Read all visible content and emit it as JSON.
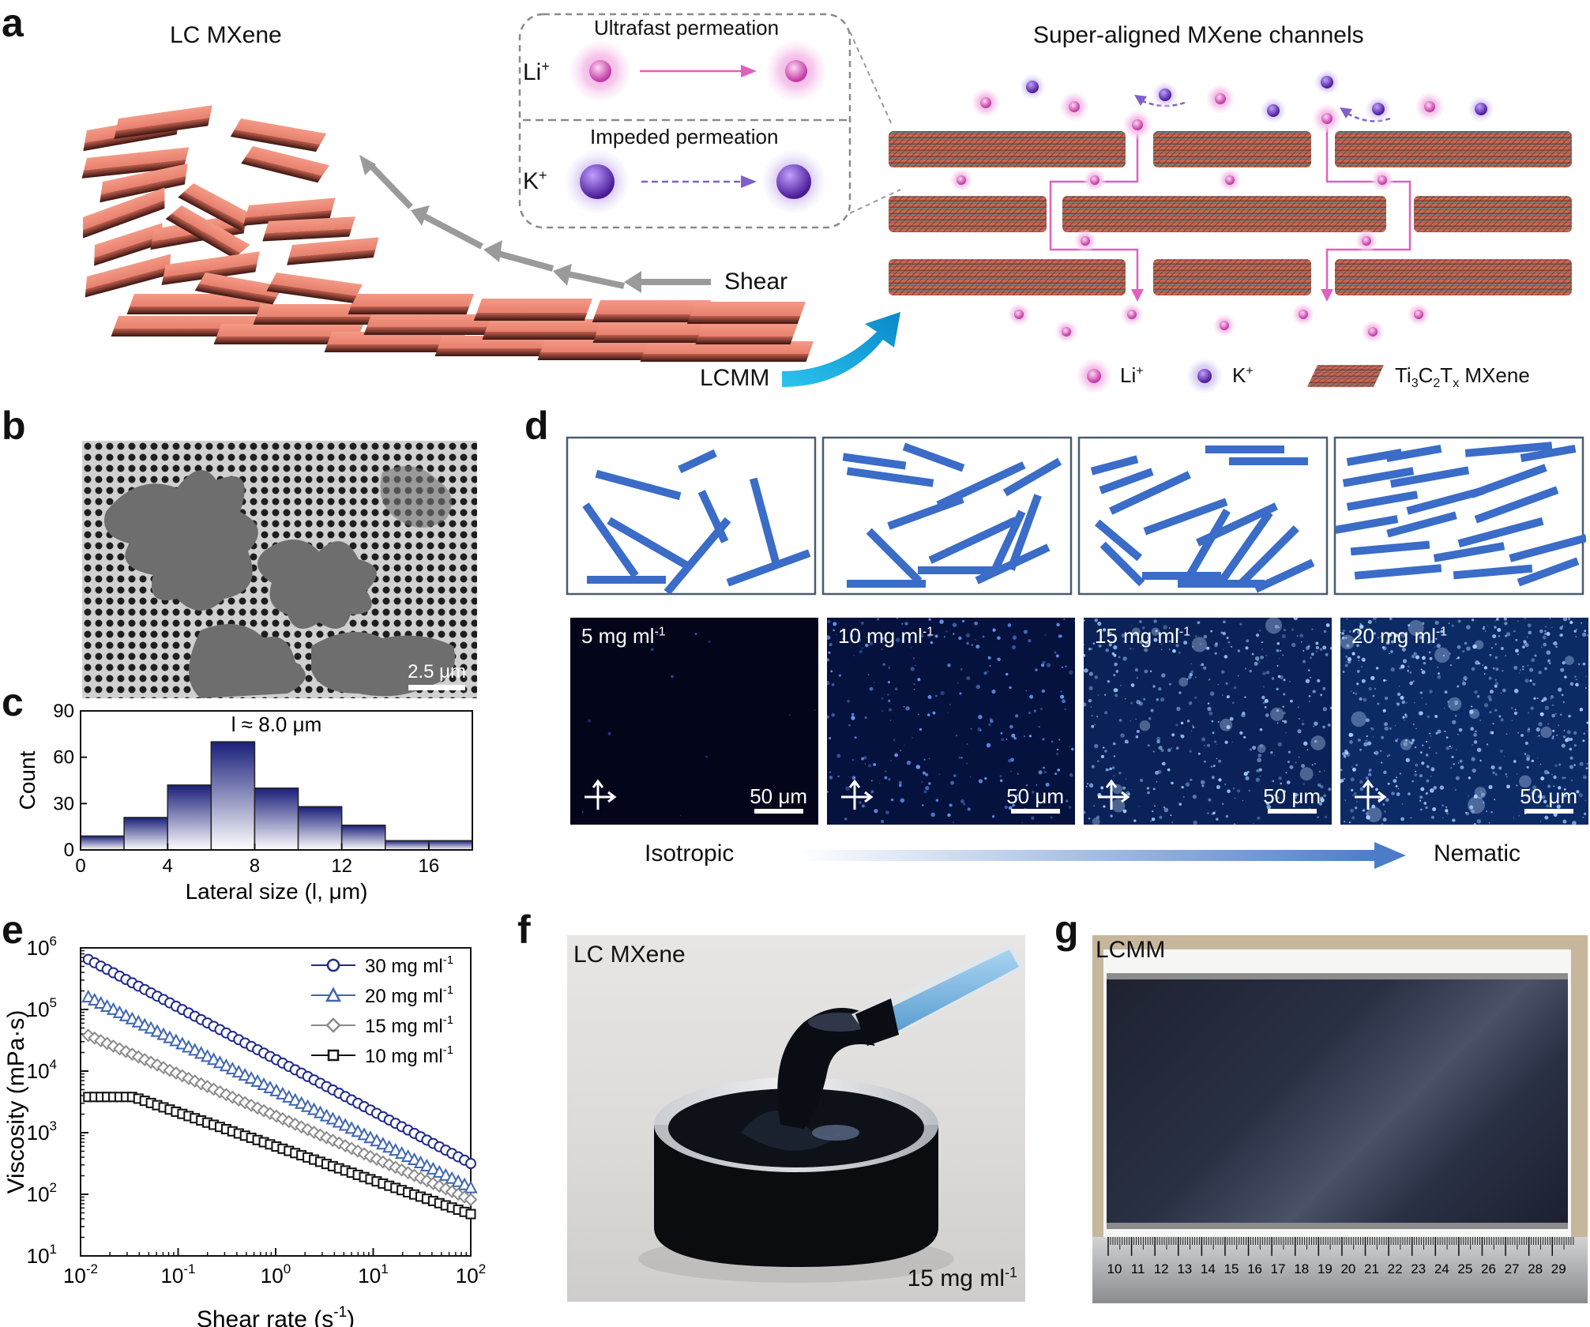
{
  "panel_labels": {
    "a": "a",
    "b": "b",
    "c": "c",
    "d": "d",
    "e": "e",
    "f": "f",
    "g": "g"
  },
  "panel_a": {
    "title_left": "LC MXene",
    "title_right": "Super-aligned MXene channels",
    "shear": "Shear",
    "lcmm": "LCMM",
    "inset_top": "Ultrafast permeation",
    "inset_bottom": "Impeded permeation",
    "li_ion": "Li",
    "k_ion": "K",
    "legend_li": "Li",
    "legend_k": "K",
    "legend_mxene_tail": "MXene",
    "colors": {
      "flake": "#e8806e",
      "li": "#e05cc0",
      "k": "#7a3fc8",
      "arrow_pink": "#e060c0",
      "arrow_purple": "#8060c8",
      "cyan_arrow": "#1aa4d8"
    }
  },
  "panel_b": {
    "scale_bar": "2.5 μm"
  },
  "panel_d": {
    "concentrations": [
      "5 mg ml",
      "10 mg ml",
      "15 mg ml",
      "20 mg ml"
    ],
    "concentration_sup": "-1",
    "scale_bar": "50 μm",
    "isotropic": "Isotropic",
    "nematic": "Nematic",
    "rod_color": "#3a6cc8"
  },
  "panel_f": {
    "title": "LC MXene",
    "caption": "15 mg ml"
  },
  "panel_g": {
    "title": "LCMM",
    "ruler": [
      "10",
      "11",
      "12",
      "13",
      "14",
      "15",
      "16",
      "17",
      "18",
      "19",
      "20",
      "21",
      "22",
      "23",
      "24",
      "25",
      "26",
      "27",
      "28",
      "29"
    ]
  },
  "chart_data": [
    {
      "type": "bar",
      "panel": "c",
      "annotation": "l ≈ 8.0 μm",
      "xlabel": "Lateral size (l, μm)",
      "ylabel": "Count",
      "bin_edges": [
        0,
        2,
        4,
        6,
        8,
        10,
        12,
        14,
        16,
        18
      ],
      "values": [
        9,
        21,
        42,
        70,
        40,
        28,
        16,
        6,
        6
      ],
      "xticks": [
        "0",
        "4",
        "8",
        "12",
        "16"
      ],
      "yticks": [
        "0",
        "30",
        "60",
        "90"
      ],
      "xlim": [
        0,
        18
      ],
      "ylim": [
        0,
        90
      ]
    },
    {
      "type": "scatter",
      "panel": "e",
      "xscale": "log",
      "yscale": "log",
      "xlabel": "Shear rate (s",
      "xlabel_sup": "-1",
      "xlabel_tail": ")",
      "ylabel": "Viscosity (mPa·s)",
      "xlim": [
        0.01,
        100
      ],
      "ylim": [
        10,
        1000000
      ],
      "xticks": [
        "10-2",
        "10-1",
        "100",
        "101",
        "102"
      ],
      "yticks": [
        "101",
        "102",
        "103",
        "104",
        "105",
        "106"
      ],
      "legend": "top-right",
      "series": [
        {
          "name": "30 mg ml",
          "sup": "-1",
          "marker": "circle",
          "color": "#1f2a8c",
          "x": [
            0.012,
            100
          ],
          "y": [
            650000,
            280
          ],
          "slope": -0.845
        },
        {
          "name": "20 mg ml",
          "sup": "-1",
          "marker": "triangle",
          "color": "#3f66b0",
          "x": [
            0.012,
            100
          ],
          "y": [
            160000,
            130
          ],
          "slope": -0.79
        },
        {
          "name": "15 mg ml",
          "sup": "-1",
          "marker": "diamond",
          "color": "#8a8a8a",
          "x": [
            0.012,
            100
          ],
          "y": [
            38000,
            85
          ],
          "slope": -0.68
        },
        {
          "name": "10 mg ml",
          "sup": "-1",
          "marker": "square",
          "color": "#111111",
          "x": [
            0.012,
            100
          ],
          "y": [
            3800,
            33
          ],
          "slope": -0.53
        }
      ]
    }
  ]
}
